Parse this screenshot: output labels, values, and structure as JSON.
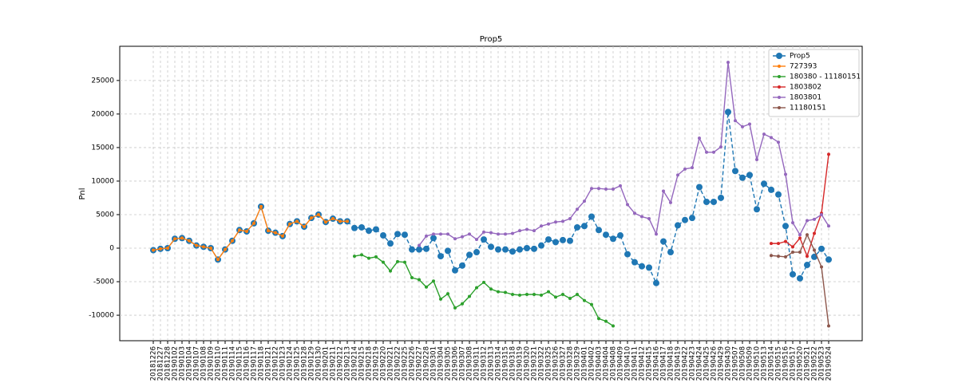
{
  "chart_data": {
    "type": "line",
    "title": "Prop5",
    "y_label": "Pnl",
    "categories": [
      "20181226",
      "20181227",
      "20181228",
      "20190102",
      "20190103",
      "20190104",
      "20190107",
      "20190108",
      "20190109",
      "20190110",
      "20190111",
      "20190114",
      "20190115",
      "20190116",
      "20190117",
      "20190118",
      "20190121",
      "20190122",
      "20190123",
      "20190124",
      "20190125",
      "20190128",
      "20190129",
      "20190130",
      "20190201",
      "20190211",
      "20190212",
      "20190213",
      "20190214",
      "20190215",
      "20190218",
      "20190219",
      "20190220",
      "20190221",
      "20190222",
      "20190225",
      "20190226",
      "20190227",
      "20190228",
      "20190301",
      "20190304",
      "20190305",
      "20190306",
      "20190307",
      "20190308",
      "20190311",
      "20190312",
      "20190313",
      "20190314",
      "20190315",
      "20190318",
      "20190319",
      "20190320",
      "20190321",
      "20190322",
      "20190325",
      "20190326",
      "20190327",
      "20190328",
      "20190329",
      "20190401",
      "20190402",
      "20190403",
      "20190404",
      "20190408",
      "20190409",
      "20190410",
      "20190411",
      "20190412",
      "20190415",
      "20190416",
      "20190417",
      "20190418",
      "20190419",
      "20190422",
      "20190423",
      "20190424",
      "20190425",
      "20190426",
      "20190429",
      "20190430",
      "20190507",
      "20190508",
      "20190509",
      "20190510",
      "20190513",
      "20190514",
      "20190515",
      "20190516",
      "20190517",
      "20190520",
      "20190521",
      "20190522",
      "20190523",
      "20190524"
    ],
    "series": [
      {
        "name": "Prop5",
        "color": "#1f77b4",
        "linestyle": "dashed",
        "marker_size": 4,
        "values": [
          -300,
          -100,
          0,
          1400,
          1500,
          1100,
          400,
          200,
          0,
          -1700,
          -200,
          1100,
          2700,
          2500,
          3700,
          6200,
          2600,
          2300,
          1800,
          3600,
          4000,
          3200,
          4500,
          5000,
          3900,
          4400,
          4000,
          4000,
          3000,
          3100,
          2600,
          2800,
          1900,
          700,
          2100,
          2000,
          -200,
          -200,
          -100,
          1500,
          -1200,
          -400,
          -3300,
          -2600,
          -1000,
          -600,
          1300,
          200,
          -200,
          -200,
          -500,
          -200,
          0,
          -100,
          400,
          1300,
          900,
          1200,
          1100,
          3100,
          3300,
          4700,
          2700,
          2000,
          1400,
          1900,
          -900,
          -2100,
          -2700,
          -2900,
          -5200,
          1000,
          -600,
          3400,
          4200,
          4500,
          9100,
          6900,
          6900,
          7500,
          20300,
          11500,
          10500,
          10900,
          5800,
          9600,
          8700,
          8000,
          3300,
          -3900,
          -4500,
          -2500,
          -1300,
          -100,
          -1700
        ]
      },
      {
        "name": "727393",
        "color": "#ff7f0e",
        "linestyle": "solid",
        "marker_size": 2,
        "values": [
          -300,
          -100,
          0,
          1400,
          1500,
          1100,
          400,
          200,
          0,
          -1700,
          -200,
          1100,
          2700,
          2500,
          3700,
          6200,
          2600,
          2300,
          1800,
          3600,
          4000,
          3200,
          4500,
          5000,
          3900,
          4400,
          4000,
          4000,
          null,
          null,
          null,
          null,
          null,
          null,
          null,
          null,
          null,
          null,
          null,
          null,
          null,
          null,
          null,
          null,
          null,
          null,
          null,
          null,
          null,
          null,
          null,
          null,
          null,
          null,
          null,
          null,
          null,
          null,
          null,
          null,
          null,
          null,
          null,
          null,
          null,
          null,
          null,
          null,
          null,
          null,
          null,
          null,
          null,
          null,
          null,
          null,
          null,
          null,
          null,
          null,
          null,
          null,
          null,
          null,
          null,
          null,
          null,
          null,
          null,
          null,
          null,
          null,
          null,
          null,
          null
        ]
      },
      {
        "name": "180380 - 11180151",
        "color": "#2ca02c",
        "linestyle": "solid",
        "marker_size": 2,
        "values": [
          null,
          null,
          null,
          null,
          null,
          null,
          null,
          null,
          null,
          null,
          null,
          null,
          null,
          null,
          null,
          null,
          null,
          null,
          null,
          null,
          null,
          null,
          null,
          null,
          null,
          null,
          null,
          null,
          -1200,
          -1000,
          -1500,
          -1300,
          -2100,
          -3400,
          -2000,
          -2100,
          -4400,
          -4700,
          -5800,
          -4900,
          -7600,
          -6800,
          -8900,
          -8300,
          -7200,
          -5900,
          -5100,
          -6100,
          -6500,
          -6600,
          -6900,
          -7000,
          -6900,
          -6900,
          -7000,
          -6500,
          -7300,
          -6900,
          -7500,
          -6900,
          -7800,
          -8400,
          -10500,
          -10900,
          -11600,
          null,
          null,
          null,
          null,
          null,
          null,
          null,
          null,
          null,
          null,
          null,
          null,
          null,
          null,
          null,
          null,
          null,
          null,
          null,
          null,
          null,
          null,
          null,
          null,
          null,
          null,
          null,
          null,
          null,
          null
        ]
      },
      {
        "name": "1803802",
        "color": "#d62728",
        "linestyle": "solid",
        "marker_size": 2,
        "values": [
          null,
          null,
          null,
          null,
          null,
          null,
          null,
          null,
          null,
          null,
          null,
          null,
          null,
          null,
          null,
          null,
          null,
          null,
          null,
          null,
          null,
          null,
          null,
          null,
          null,
          null,
          null,
          null,
          null,
          null,
          null,
          null,
          null,
          null,
          null,
          null,
          null,
          null,
          null,
          null,
          null,
          null,
          null,
          null,
          null,
          null,
          null,
          null,
          null,
          null,
          null,
          null,
          null,
          null,
          null,
          null,
          null,
          null,
          null,
          null,
          null,
          null,
          null,
          null,
          null,
          null,
          null,
          null,
          null,
          null,
          null,
          null,
          null,
          null,
          null,
          null,
          null,
          null,
          null,
          null,
          null,
          null,
          null,
          null,
          null,
          null,
          700,
          700,
          1000,
          200,
          1500,
          -1200,
          2200,
          5200,
          14000
        ]
      },
      {
        "name": "1803801",
        "color": "#9467bd",
        "linestyle": "solid",
        "marker_size": 2,
        "values": [
          null,
          null,
          null,
          null,
          null,
          null,
          null,
          null,
          null,
          null,
          null,
          null,
          null,
          null,
          null,
          null,
          null,
          null,
          null,
          null,
          null,
          null,
          null,
          null,
          null,
          null,
          null,
          null,
          null,
          null,
          null,
          null,
          null,
          null,
          null,
          null,
          null,
          400,
          1800,
          2100,
          2100,
          2100,
          1400,
          1700,
          2100,
          1300,
          2400,
          2300,
          2100,
          2100,
          2200,
          2600,
          2800,
          2600,
          3300,
          3600,
          3900,
          4000,
          4400,
          5800,
          7000,
          8900,
          8900,
          8800,
          8800,
          9300,
          6500,
          5200,
          4700,
          4400,
          2100,
          8500,
          6800,
          10900,
          11800,
          12000,
          16400,
          14300,
          14300,
          15100,
          27700,
          19000,
          18100,
          18500,
          13200,
          17000,
          16500,
          15800,
          11000,
          3800,
          2000,
          4100,
          4300,
          5000,
          3300
        ]
      },
      {
        "name": "11180151",
        "color": "#8c564b",
        "linestyle": "solid",
        "marker_size": 2,
        "values": [
          null,
          null,
          null,
          null,
          null,
          null,
          null,
          null,
          null,
          null,
          null,
          null,
          null,
          null,
          null,
          null,
          null,
          null,
          null,
          null,
          null,
          null,
          null,
          null,
          null,
          null,
          null,
          null,
          null,
          null,
          null,
          null,
          null,
          null,
          null,
          null,
          null,
          null,
          null,
          null,
          null,
          null,
          null,
          null,
          null,
          null,
          null,
          null,
          null,
          null,
          null,
          null,
          null,
          null,
          null,
          null,
          null,
          null,
          null,
          null,
          null,
          null,
          null,
          null,
          null,
          null,
          null,
          null,
          null,
          null,
          null,
          null,
          null,
          null,
          null,
          null,
          null,
          null,
          null,
          null,
          null,
          null,
          null,
          null,
          null,
          null,
          -1100,
          -1200,
          -1300,
          -600,
          -600,
          2000,
          -300,
          -2800,
          -11600
        ]
      }
    ],
    "ylim": [
      -13800,
      30100
    ],
    "yticks": [
      -10000,
      -5000,
      0,
      5000,
      10000,
      15000,
      20000,
      25000
    ],
    "grid": true,
    "legend": "upper right"
  }
}
